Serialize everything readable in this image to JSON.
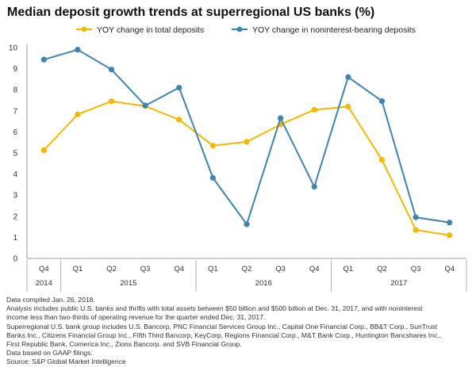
{
  "chart_data": {
    "type": "line",
    "title": "Median deposit growth trends at superregional US banks (%)",
    "xlabel": "",
    "ylabel": "",
    "ylim": [
      0,
      10
    ],
    "yticks": [
      "0",
      "1",
      "2",
      "3",
      "4",
      "5",
      "6",
      "7",
      "8",
      "9",
      "10"
    ],
    "grid": false,
    "legend_position": "top",
    "categories": [
      "Q4",
      "Q1",
      "Q2",
      "Q3",
      "Q4",
      "Q1",
      "Q2",
      "Q3",
      "Q4",
      "Q1",
      "Q2",
      "Q3",
      "Q4"
    ],
    "year_groups": [
      {
        "label": "2014",
        "start": 0,
        "end": 0
      },
      {
        "label": "2015",
        "start": 1,
        "end": 4
      },
      {
        "label": "2016",
        "start": 5,
        "end": 8
      },
      {
        "label": "2017",
        "start": 9,
        "end": 12
      }
    ],
    "series": [
      {
        "name": "YOY change in total deposits",
        "color": "#f5b800",
        "values": [
          5.13,
          6.83,
          7.45,
          7.22,
          6.58,
          5.35,
          5.53,
          6.35,
          7.05,
          7.2,
          4.67,
          1.35,
          1.1
        ]
      },
      {
        "name": "YOY change in noninterest-bearing deposits",
        "color": "#3e84b0",
        "values": [
          9.43,
          9.9,
          8.96,
          7.25,
          8.1,
          3.82,
          1.62,
          6.65,
          3.4,
          8.6,
          7.46,
          1.95,
          1.7
        ]
      }
    ]
  },
  "notes": [
    "Data compiled Jan. 26, 2018.",
    "Analysis includes public U.S. banks and thrifts with total assets between $50 billion and $500 billion at Dec. 31, 2017, and with noninterest",
    "income less than two-thirds of operating revenue for the quarter ended Dec. 31, 2017.",
    "Superregional U.S. bank group includes U.S. Bancorp, PNC Financial Services Group Inc., Capital One Financial Corp., BB&T Corp., SunTrust",
    "Banks Inc., Citizens Financial Group Inc., Fifth Third Bancorp, KeyCorp, Regions Financial Corp., M&T Bank Corp., Huntington Bancshares Inc.,",
    "First Republic Bank, Comerica Inc., Zions Bancorp. and SVB Financial Group.",
    "Data based on GAAP filings.",
    "Source: S&P Global Market Intelligence"
  ]
}
